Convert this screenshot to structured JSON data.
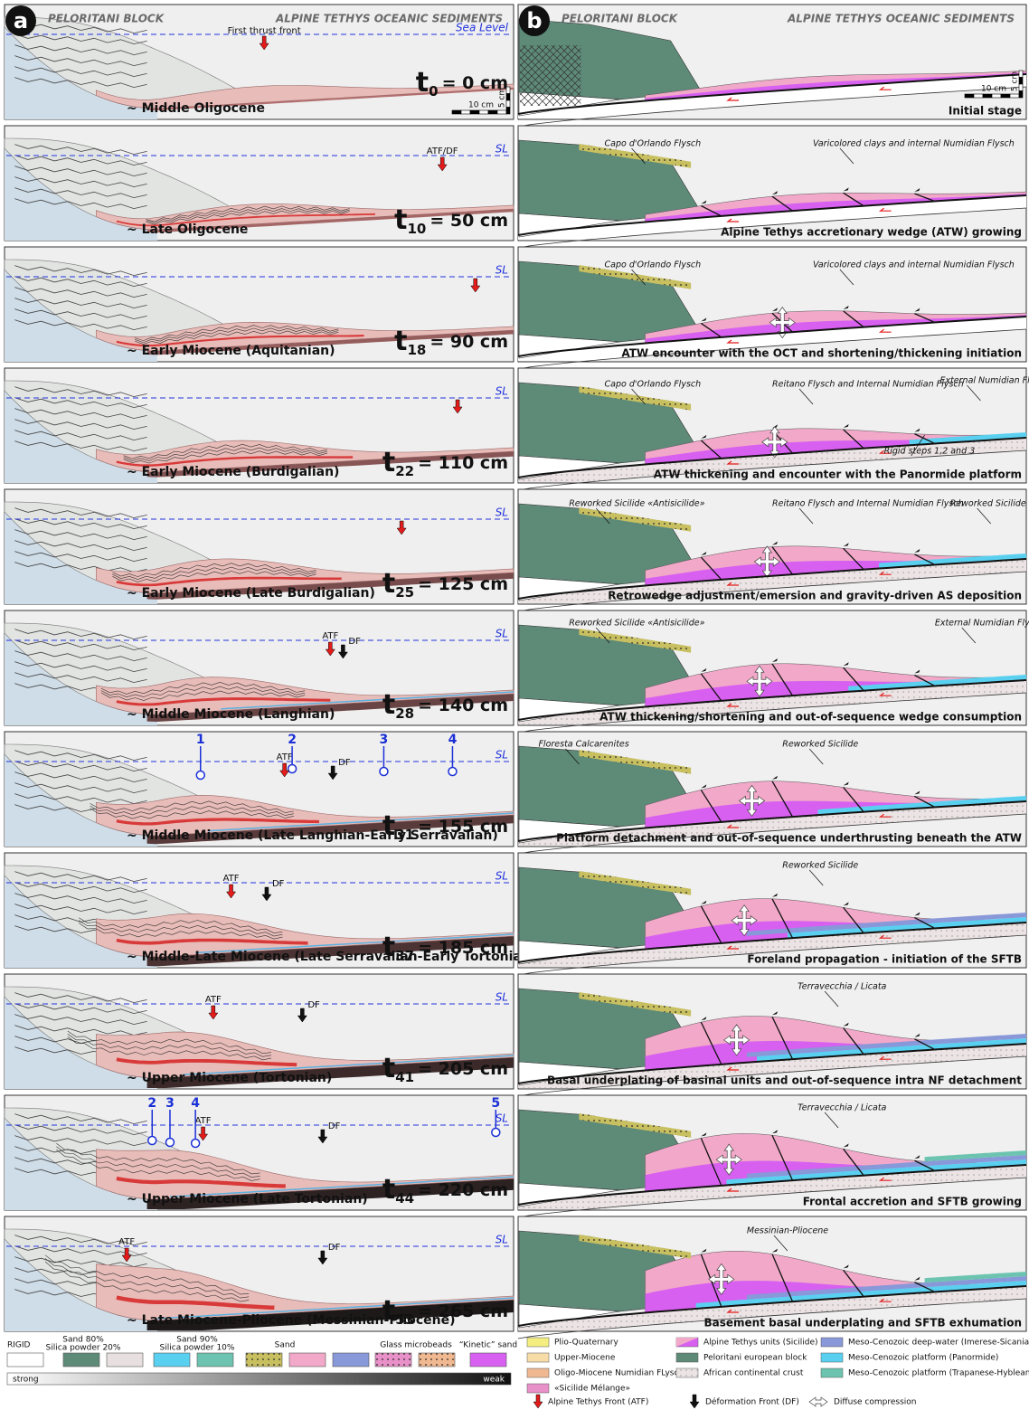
{
  "panel_a": {
    "label": "a",
    "header_left": "PELORITANI BLOCK",
    "header_right": "ALPINE TETHYS OCEANIC SEDIMENTS",
    "sea_level": "Sea Level",
    "first_thrust": "First thrust front",
    "scale_h": "10 cm",
    "scale_v": "5 cm",
    "symbol": "t",
    "stages": [
      {
        "index": "0",
        "length": "= 0 cm",
        "epoch": "~ Middle Oligocene"
      },
      {
        "index": "10",
        "length": "= 50 cm",
        "epoch": "~ Late Oligocene",
        "sl": "SL",
        "atf_df": "ATF/DF"
      },
      {
        "index": "18",
        "length": "= 90 cm",
        "epoch": "~ Early Miocene (Aquitanian)",
        "sl": "SL"
      },
      {
        "index": "22",
        "length": "= 110 cm",
        "epoch": "~ Early Miocene (Burdigalian)",
        "sl": "SL"
      },
      {
        "index": "25",
        "length": "= 125 cm",
        "epoch": "~ Early Miocene (Late Burdigalian)",
        "sl": "SL"
      },
      {
        "index": "28",
        "length": "= 140 cm",
        "epoch": "~ Middle Miocene (Langhian)",
        "sl": "SL",
        "atf": "ATF",
        "df": "DF"
      },
      {
        "index": "31",
        "length": "= 155 cm",
        "epoch": "~ Middle Miocene (Late Langhian-Early Serravalian)",
        "sl": "SL",
        "atf": "ATF",
        "df": "DF",
        "wells": [
          "1",
          "2",
          "3",
          "4"
        ]
      },
      {
        "index": "37",
        "length": "= 185 cm",
        "epoch": "~ Middle-Late Miocene (Late Serravalian-Early Tortonian)",
        "sl": "SL",
        "atf": "ATF",
        "df": "DF"
      },
      {
        "index": "41",
        "length": "= 205 cm",
        "epoch": "~ Upper Miocene (Tortonian)",
        "sl": "SL",
        "atf": "ATF",
        "df": "DF"
      },
      {
        "index": "44",
        "length": "= 220 cm",
        "epoch": "~ Upper Miocene (Late Tortonian)",
        "sl": "SL",
        "atf": "ATF",
        "df": "DF",
        "wells": [
          "2",
          "3",
          "4",
          "5"
        ]
      },
      {
        "index": "53",
        "length": "= 265 cm",
        "epoch": "~ Late Miocene-Pliocene (Messinian-Pliocene)",
        "sl": "SL",
        "atf": "ATF",
        "df": "DF"
      }
    ]
  },
  "panel_b": {
    "label": "b",
    "header_left": "PELORITANI BLOCK",
    "header_right": "ALPINE TETHYS OCEANIC SEDIMENTS",
    "scale_h": "10 cm",
    "scale_v": "5 cm",
    "stages": [
      {
        "caption": "Initial stage"
      },
      {
        "caption": "Alpine Tethys accretionary wedge (ATW) growing",
        "labels": [
          "Capo d'Orlando Flysch",
          "Varicolored clays and internal Numidian Flysch"
        ]
      },
      {
        "caption": "ATW encounter with the OCT and shortening/thickening initiation",
        "labels": [
          "Capo d'Orlando Flysch",
          "Varicolored clays and internal Numidian Flysch"
        ]
      },
      {
        "caption": "ATW thickening and encounter with the Panormide platform",
        "labels": [
          "Capo d'Orlando Flysch",
          "Reitano Flysch and Internal Numidian Flysch",
          "External Numidian Flysch",
          "Rigid steps 1,2 and 3"
        ]
      },
      {
        "caption": "Retrowedge adjustment/emersion and gravity-driven AS deposition",
        "labels": [
          "Reworked Sicilide «Antisicilide»",
          "Reitano Flysch and Internal Numidian Flysch",
          "Reworked Sicilide"
        ]
      },
      {
        "caption": "ATW thickening/shortening and out-of-sequence wedge consumption",
        "labels": [
          "Reworked Sicilide «Antisicilide»",
          "External Numidian Flysch"
        ]
      },
      {
        "caption": "Platform detachment and out-of-sequence underthrusting beneath the ATW",
        "labels": [
          "Floresta Calcarenites",
          "Reworked Sicilide"
        ]
      },
      {
        "caption": "Foreland propagation - initiation of the SFTB",
        "labels": [
          "Reworked Sicilide"
        ]
      },
      {
        "caption": "Basal underplating of basinal units and out-of-sequence intra NF detachment",
        "labels": [
          "Terravecchia / Licata"
        ]
      },
      {
        "caption": "Frontal accretion and SFTB growing",
        "labels": [
          "Terravecchia / Licata"
        ]
      },
      {
        "caption": "Basement basal underplating and SFTB exhumation",
        "labels": [
          "Messinian-Pliocene"
        ]
      }
    ]
  },
  "legend": {
    "left": {
      "rigid": "RIGID",
      "sand80": [
        "Sand 80%",
        "Silica powder 20%"
      ],
      "sand90": [
        "Sand 90%",
        "Silica powder 10%"
      ],
      "sand": "Sand",
      "glass": "Glass microbeads",
      "kinetic": "“Kinetic” sand",
      "strong": "strong",
      "weak": "weak"
    },
    "right": {
      "units": [
        "Plio-Quaternary",
        "Upper-Miocene",
        "Oligo-Miocene Numidian FLysch",
        "«Sicilide Mélange»",
        "Alpine Tethys units (Sicilide)",
        "Peloritani european block",
        "African continental crust",
        "Meso-Cenozoic deep-water (Imerese-Sicanian)",
        "Meso-Cenozoic platform (Panormide)",
        "Meso-Cenozoic platform (Trapanese-Hyblean)"
      ],
      "atf": "Alpine Tethys Front (ATF)",
      "df": "Déformation Front (DF)",
      "diffuse": "Diffuse compression"
    }
  }
}
